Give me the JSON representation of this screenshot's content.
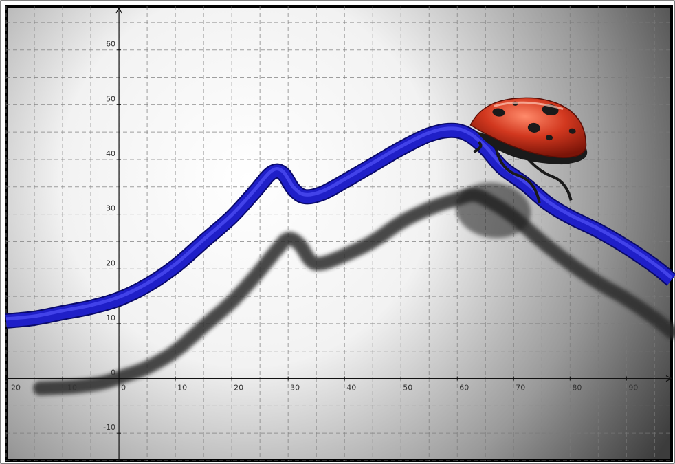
{
  "chart_data": {
    "type": "line",
    "title": "",
    "xlabel": "",
    "ylabel": "",
    "xlim": [
      -20,
      98
    ],
    "ylim": [
      -15,
      68
    ],
    "grid": true,
    "x_ticks": [
      -20,
      -10,
      0,
      10,
      20,
      30,
      40,
      50,
      60,
      70,
      80,
      90
    ],
    "y_ticks": [
      -10,
      0,
      10,
      20,
      30,
      40,
      50,
      60
    ],
    "series": [
      {
        "color": "#1f1fc8",
        "points": [
          [
            -20,
            10.5
          ],
          [
            -15,
            11
          ],
          [
            -10,
            12
          ],
          [
            -5,
            13
          ],
          [
            0,
            14.5
          ],
          [
            5,
            17
          ],
          [
            10,
            20.5
          ],
          [
            15,
            25
          ],
          [
            20,
            29.5
          ],
          [
            24,
            34
          ],
          [
            27,
            37.5
          ],
          [
            29,
            37.5
          ],
          [
            31,
            34.5
          ],
          [
            33,
            33.2
          ],
          [
            36,
            33.8
          ],
          [
            40,
            36
          ],
          [
            45,
            39
          ],
          [
            50,
            42
          ],
          [
            55,
            44.5
          ],
          [
            59,
            45.3
          ],
          [
            62,
            44.5
          ],
          [
            65,
            42
          ],
          [
            68,
            38.5
          ],
          [
            72,
            35.5
          ],
          [
            76,
            32
          ],
          [
            80,
            29.5
          ],
          [
            85,
            27
          ],
          [
            90,
            24
          ],
          [
            95,
            20.5
          ],
          [
            98,
            18
          ]
        ]
      }
    ],
    "shadow": {
      "color": "#2a2a2a",
      "points": [
        [
          -14,
          -1.8
        ],
        [
          -8,
          -1.5
        ],
        [
          -3,
          -0.8
        ],
        [
          1,
          0.5
        ],
        [
          5,
          2
        ],
        [
          10,
          5
        ],
        [
          15,
          9.5
        ],
        [
          20,
          14
        ],
        [
          24,
          18.5
        ],
        [
          28,
          23.5
        ],
        [
          30,
          25.5
        ],
        [
          32,
          24.5
        ],
        [
          34,
          21.5
        ],
        [
          36,
          21
        ],
        [
          40,
          22.5
        ],
        [
          45,
          25
        ],
        [
          50,
          28.5
        ],
        [
          55,
          31
        ],
        [
          60,
          32.8
        ],
        [
          63,
          33.5
        ],
        [
          66,
          32.2
        ],
        [
          70,
          29.5
        ],
        [
          75,
          25
        ],
        [
          80,
          21
        ],
        [
          85,
          17.5
        ],
        [
          90,
          14.5
        ],
        [
          95,
          11
        ],
        [
          98,
          8.5
        ]
      ]
    },
    "background": {
      "spot_color": "#ffffff",
      "edge_color": "#3c3c3c"
    },
    "axis_color": "#111111",
    "grid_color": "#7a7a7a"
  },
  "decoration": {
    "ladybug": {
      "shell_color": "#d2381f",
      "spot_color": "#1a1a1a",
      "body_color": "#1a1a1a",
      "x": 72,
      "y": 43
    }
  }
}
